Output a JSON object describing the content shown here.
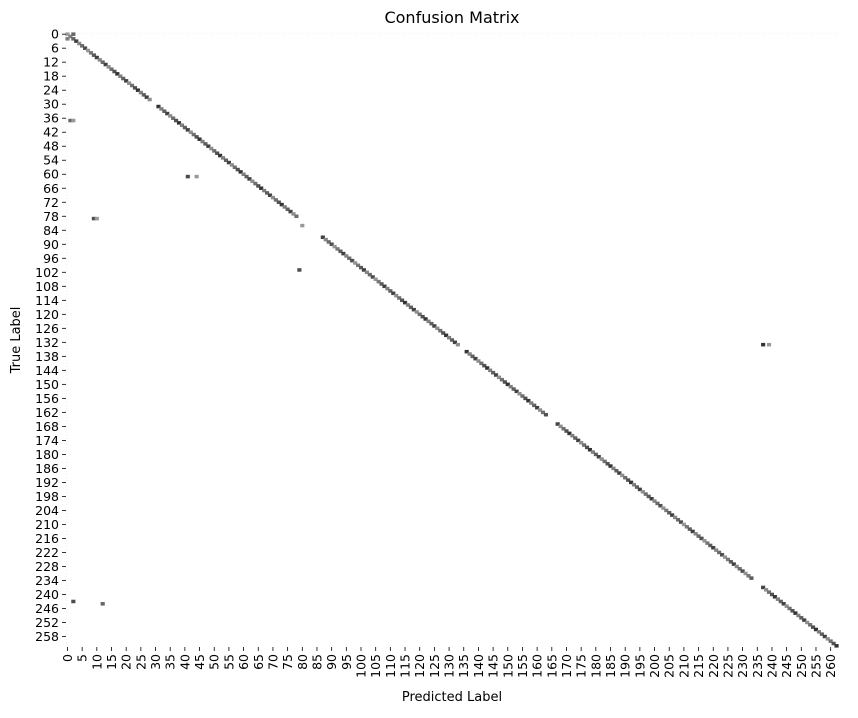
{
  "chart_data": {
    "type": "heatmap",
    "title": "Confusion Matrix",
    "xlabel": "Predicted Label",
    "ylabel": "True Label",
    "n_classes": 263,
    "x_ticks": [
      0,
      5,
      10,
      15,
      20,
      25,
      30,
      35,
      40,
      45,
      50,
      55,
      60,
      65,
      70,
      75,
      80,
      85,
      90,
      95,
      100,
      105,
      110,
      115,
      120,
      125,
      130,
      135,
      140,
      145,
      150,
      155,
      160,
      165,
      170,
      175,
      180,
      185,
      190,
      195,
      200,
      205,
      210,
      215,
      220,
      225,
      230,
      235,
      240,
      245,
      250,
      255,
      260
    ],
    "y_ticks": [
      0,
      6,
      12,
      18,
      24,
      30,
      36,
      42,
      48,
      54,
      60,
      66,
      72,
      78,
      84,
      90,
      96,
      102,
      108,
      114,
      120,
      126,
      132,
      138,
      144,
      150,
      156,
      162,
      168,
      174,
      180,
      186,
      192,
      198,
      204,
      210,
      216,
      222,
      228,
      234,
      240,
      246,
      252,
      258
    ],
    "grid": false,
    "colors": {
      "low": "#ffffff",
      "high": "#000000",
      "faint": "#f2f2f8"
    },
    "diagonal_segments": [
      {
        "from": 0,
        "to": 2,
        "intensity": 0.7
      },
      {
        "from": 3,
        "to": 12,
        "intensity": 0.75
      },
      {
        "from": 13,
        "to": 28,
        "intensity": 0.8
      },
      {
        "from": 31,
        "to": 46,
        "intensity": 0.8
      },
      {
        "from": 47,
        "to": 78,
        "intensity": 0.8
      },
      {
        "from": 87,
        "to": 108,
        "intensity": 0.75
      },
      {
        "from": 109,
        "to": 133,
        "intensity": 0.8
      },
      {
        "from": 136,
        "to": 163,
        "intensity": 0.8
      },
      {
        "from": 167,
        "to": 197,
        "intensity": 0.8
      },
      {
        "from": 198,
        "to": 233,
        "intensity": 0.75
      },
      {
        "from": 237,
        "to": 262,
        "intensity": 0.8
      }
    ],
    "off_diagonal": [
      {
        "true": 0,
        "pred": 2,
        "value": 0.6
      },
      {
        "true": 37,
        "pred": 1,
        "value": 0.6
      },
      {
        "true": 37,
        "pred": 2,
        "value": 0.4
      },
      {
        "true": 61,
        "pred": 41,
        "value": 0.7
      },
      {
        "true": 61,
        "pred": 44,
        "value": 0.4
      },
      {
        "true": 79,
        "pred": 9,
        "value": 0.7
      },
      {
        "true": 79,
        "pred": 10,
        "value": 0.4
      },
      {
        "true": 101,
        "pred": 79,
        "value": 0.7
      },
      {
        "true": 133,
        "pred": 237,
        "value": 0.8
      },
      {
        "true": 133,
        "pred": 239,
        "value": 0.4
      },
      {
        "true": 243,
        "pred": 2,
        "value": 0.7
      },
      {
        "true": 244,
        "pred": 12,
        "value": 0.6
      },
      {
        "true": 82,
        "pred": 80,
        "value": 0.4
      },
      {
        "true": 2,
        "pred": 0,
        "value": 0.5
      }
    ]
  }
}
